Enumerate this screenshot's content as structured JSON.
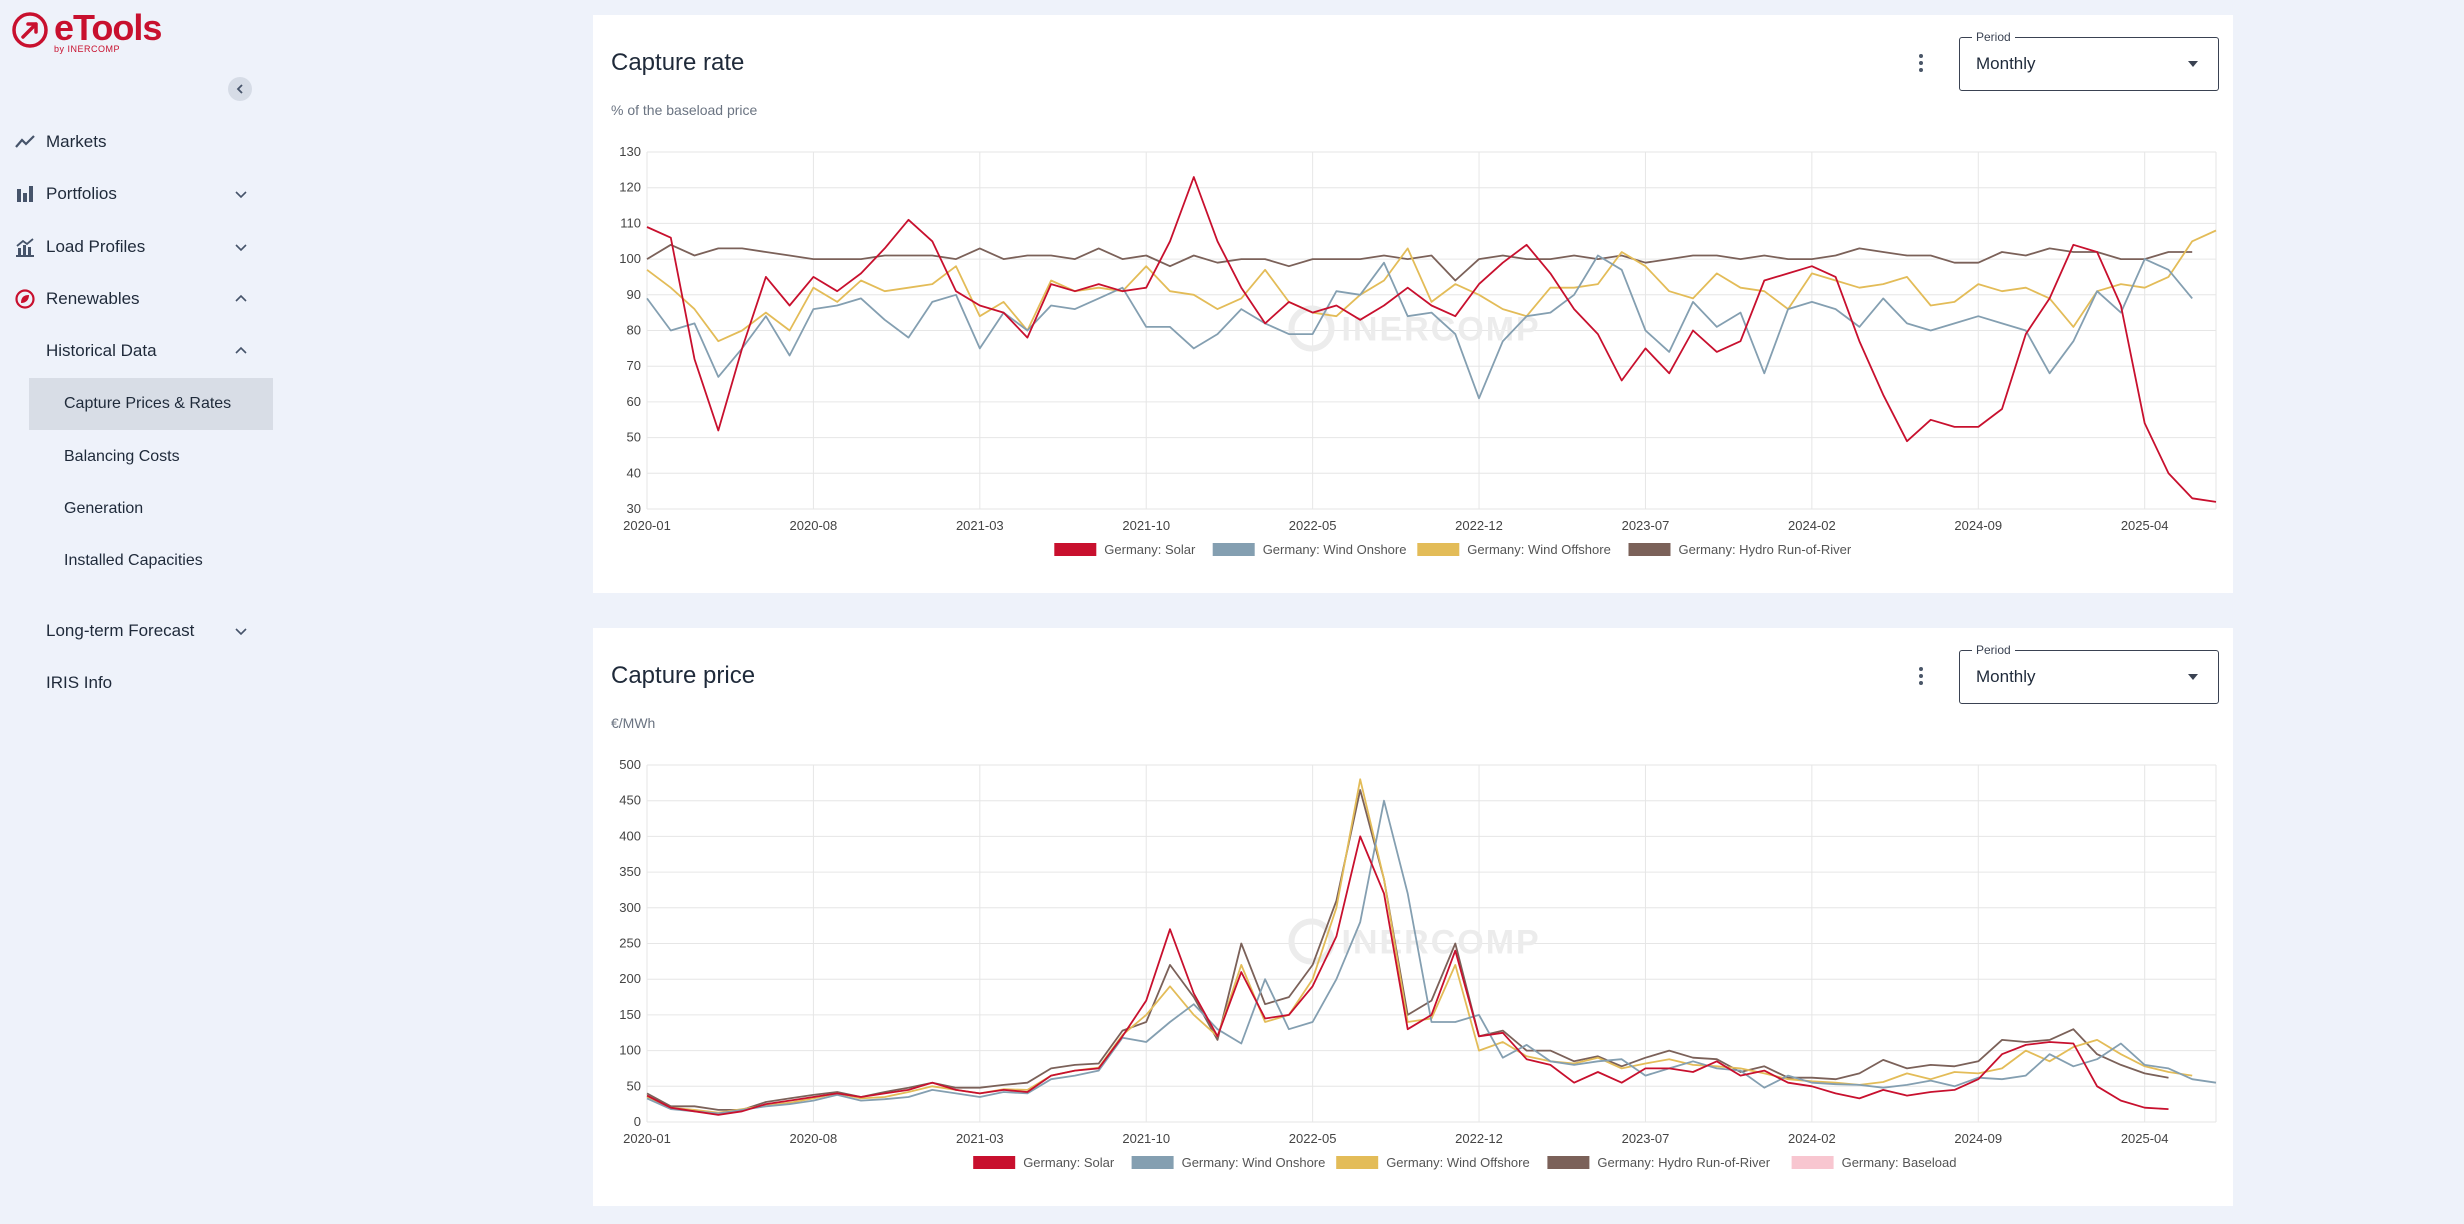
{
  "app": {
    "name": "eTools",
    "by": "by INERCOMP"
  },
  "sidebar": {
    "collapse_icon": "chevron-left-icon",
    "items": [
      {
        "label": "Markets",
        "icon": "trend-icon"
      },
      {
        "label": "Portfolios",
        "icon": "bar-chart-icon"
      },
      {
        "label": "Load Profiles",
        "icon": "load-chart-icon"
      },
      {
        "label": "Renewables",
        "icon": "leaf-icon"
      }
    ],
    "renewables_sub": {
      "historical": "Historical Data",
      "historical_items": [
        "Capture Prices & Rates",
        "Balancing Costs",
        "Generation",
        "Installed Capacities"
      ],
      "long_term": "Long-term Forecast",
      "iris": "IRIS Info"
    }
  },
  "watermark": "INERCOMP",
  "colors": {
    "solar": "#c8102e",
    "onshore": "#849fb1",
    "offshore": "#e3bc58",
    "hydro": "#7b6159",
    "baseload": "#f8c6d0"
  },
  "cards": [
    {
      "title": "Capture rate",
      "subtitle": "% of the baseload price",
      "period_label": "Period",
      "period_value": "Monthly",
      "chart_data": {
        "type": "line",
        "x_ticks": [
          "2020-01",
          "2020-08",
          "2021-03",
          "2021-10",
          "2022-05",
          "2022-12",
          "2023-07",
          "2024-02",
          "2024-09",
          "2025-04"
        ],
        "ylim": [
          30,
          130
        ],
        "y_ticks": [
          30,
          40,
          50,
          60,
          70,
          80,
          90,
          100,
          110,
          120,
          130
        ],
        "grid": true,
        "legend": "bottom",
        "series": [
          {
            "name": "Germany: Solar",
            "color": "#c8102e",
            "values": [
              109,
              106,
              72,
              52,
              75,
              95,
              87,
              95,
              91,
              96,
              103,
              111,
              105,
              91,
              87,
              85,
              78,
              93,
              91,
              93,
              91,
              92,
              105,
              123,
              105,
              92,
              82,
              88,
              85,
              87,
              83,
              87,
              92,
              87,
              84,
              93,
              99,
              104,
              96,
              86,
              79,
              66,
              75,
              68,
              80,
              74,
              77,
              94,
              96,
              98,
              95,
              77,
              62,
              49,
              55,
              53,
              53,
              58,
              79,
              89,
              104,
              102,
              87,
              54,
              40,
              33,
              32
            ]
          },
          {
            "name": "Germany: Wind Onshore",
            "color": "#849fb1",
            "values": [
              89,
              80,
              82,
              67,
              75,
              84,
              73,
              86,
              87,
              89,
              83,
              78,
              88,
              90,
              75,
              85,
              80,
              87,
              86,
              89,
              92,
              81,
              81,
              75,
              79,
              86,
              82,
              79,
              79,
              91,
              90,
              99,
              84,
              85,
              79,
              61,
              77,
              84,
              85,
              90,
              101,
              97,
              80,
              74,
              88,
              81,
              85,
              68,
              86,
              88,
              86,
              81,
              89,
              82,
              80,
              82,
              84,
              82,
              80,
              68,
              77,
              91,
              85,
              100,
              97,
              89
            ]
          },
          {
            "name": "Germany: Wind Offshore",
            "color": "#e3bc58",
            "values": [
              97,
              92,
              86,
              77,
              80,
              85,
              80,
              92,
              88,
              94,
              91,
              92,
              93,
              98,
              84,
              88,
              80,
              94,
              91,
              92,
              91,
              98,
              91,
              90,
              86,
              89,
              97,
              88,
              85,
              84,
              90,
              94,
              103,
              88,
              93,
              90,
              86,
              84,
              92,
              92,
              93,
              102,
              98,
              91,
              89,
              96,
              92,
              91,
              86,
              96,
              94,
              92,
              93,
              95,
              87,
              88,
              93,
              91,
              92,
              89,
              81,
              91,
              93,
              92,
              95,
              105,
              108
            ]
          },
          {
            "name": "Germany: Hydro Run-of-River",
            "color": "#7b6159",
            "values": [
              100,
              104,
              101,
              103,
              103,
              102,
              101,
              100,
              100,
              100,
              101,
              101,
              101,
              100,
              103,
              100,
              101,
              101,
              100,
              103,
              100,
              101,
              98,
              101,
              99,
              100,
              100,
              98,
              100,
              100,
              100,
              101,
              100,
              101,
              94,
              100,
              101,
              100,
              100,
              101,
              100,
              101,
              99,
              100,
              101,
              101,
              100,
              101,
              100,
              100,
              101,
              103,
              102,
              101,
              101,
              99,
              99,
              102,
              101,
              103,
              102,
              102,
              100,
              100,
              102,
              102
            ]
          }
        ]
      }
    },
    {
      "title": "Capture price",
      "subtitle": "€/MWh",
      "period_label": "Period",
      "period_value": "Monthly",
      "chart_data": {
        "type": "line",
        "x_ticks": [
          "2020-01",
          "2020-08",
          "2021-03",
          "2021-10",
          "2022-05",
          "2022-12",
          "2023-07",
          "2024-02",
          "2024-09",
          "2025-04"
        ],
        "ylim": [
          0,
          500
        ],
        "y_ticks": [
          0,
          50,
          100,
          150,
          200,
          250,
          300,
          350,
          400,
          450,
          500
        ],
        "grid": true,
        "legend": "bottom",
        "series": [
          {
            "name": "Germany: Solar",
            "color": "#c8102e",
            "values": [
              37,
              20,
              15,
              10,
              15,
              25,
              30,
              35,
              40,
              35,
              40,
              45,
              55,
              45,
              40,
              45,
              42,
              65,
              72,
              75,
              120,
              170,
              270,
              180,
              120,
              210,
              145,
              150,
              190,
              260,
              400,
              320,
              130,
              150,
              240,
              120,
              125,
              88,
              80,
              55,
              70,
              55,
              75,
              75,
              70,
              85,
              65,
              72,
              55,
              50,
              40,
              33,
              45,
              37,
              42,
              45,
              60,
              95,
              108,
              112,
              110,
              50,
              30,
              20,
              18
            ]
          },
          {
            "name": "Germany: Wind Onshore",
            "color": "#849fb1",
            "values": [
              33,
              18,
              15,
              12,
              17,
              22,
              25,
              30,
              38,
              30,
              32,
              35,
              45,
              40,
              35,
              42,
              40,
              60,
              65,
              72,
              118,
              112,
              140,
              165,
              130,
              110,
              200,
              130,
              140,
              200,
              280,
              450,
              320,
              140,
              140,
              150,
              90,
              108,
              85,
              80,
              85,
              88,
              65,
              75,
              85,
              75,
              72,
              48,
              65,
              55,
              53,
              52,
              48,
              52,
              58,
              50,
              62,
              60,
              65,
              95,
              78,
              88,
              110,
              80,
              75,
              60,
              55
            ]
          },
          {
            "name": "Germany: Wind Offshore",
            "color": "#e3bc58",
            "values": [
              35,
              20,
              17,
              13,
              18,
              23,
              27,
              33,
              40,
              33,
              35,
              42,
              50,
              45,
              40,
              46,
              45,
              65,
              72,
              76,
              122,
              150,
              190,
              150,
              120,
              220,
              140,
              150,
              200,
              300,
              480,
              340,
              140,
              145,
              220,
              100,
              112,
              92,
              85,
              82,
              90,
              75,
              82,
              88,
              80,
              78,
              75,
              68,
              60,
              57,
              55,
              52,
              56,
              68,
              60,
              70,
              68,
              75,
              100,
              85,
              105,
              115,
              95,
              78,
              70,
              65
            ]
          },
          {
            "name": "Germany: Hydro Run-of-River",
            "color": "#7b6159",
            "values": [
              40,
              22,
              22,
              17,
              17,
              28,
              33,
              38,
              42,
              35,
              42,
              48,
              55,
              48,
              48,
              52,
              55,
              75,
              80,
              82,
              128,
              140,
              220,
              175,
              115,
              250,
              165,
              175,
              220,
              310,
              465,
              340,
              150,
              170,
              250,
              120,
              128,
              100,
              100,
              85,
              92,
              78,
              90,
              100,
              90,
              88,
              70,
              78,
              62,
              62,
              60,
              68,
              87,
              75,
              80,
              78,
              85,
              115,
              112,
              115,
              130,
              95,
              80,
              68,
              62
            ]
          },
          {
            "name": "Germany: Baseload",
            "color": "#f8c6d0",
            "values": []
          }
        ]
      }
    }
  ]
}
